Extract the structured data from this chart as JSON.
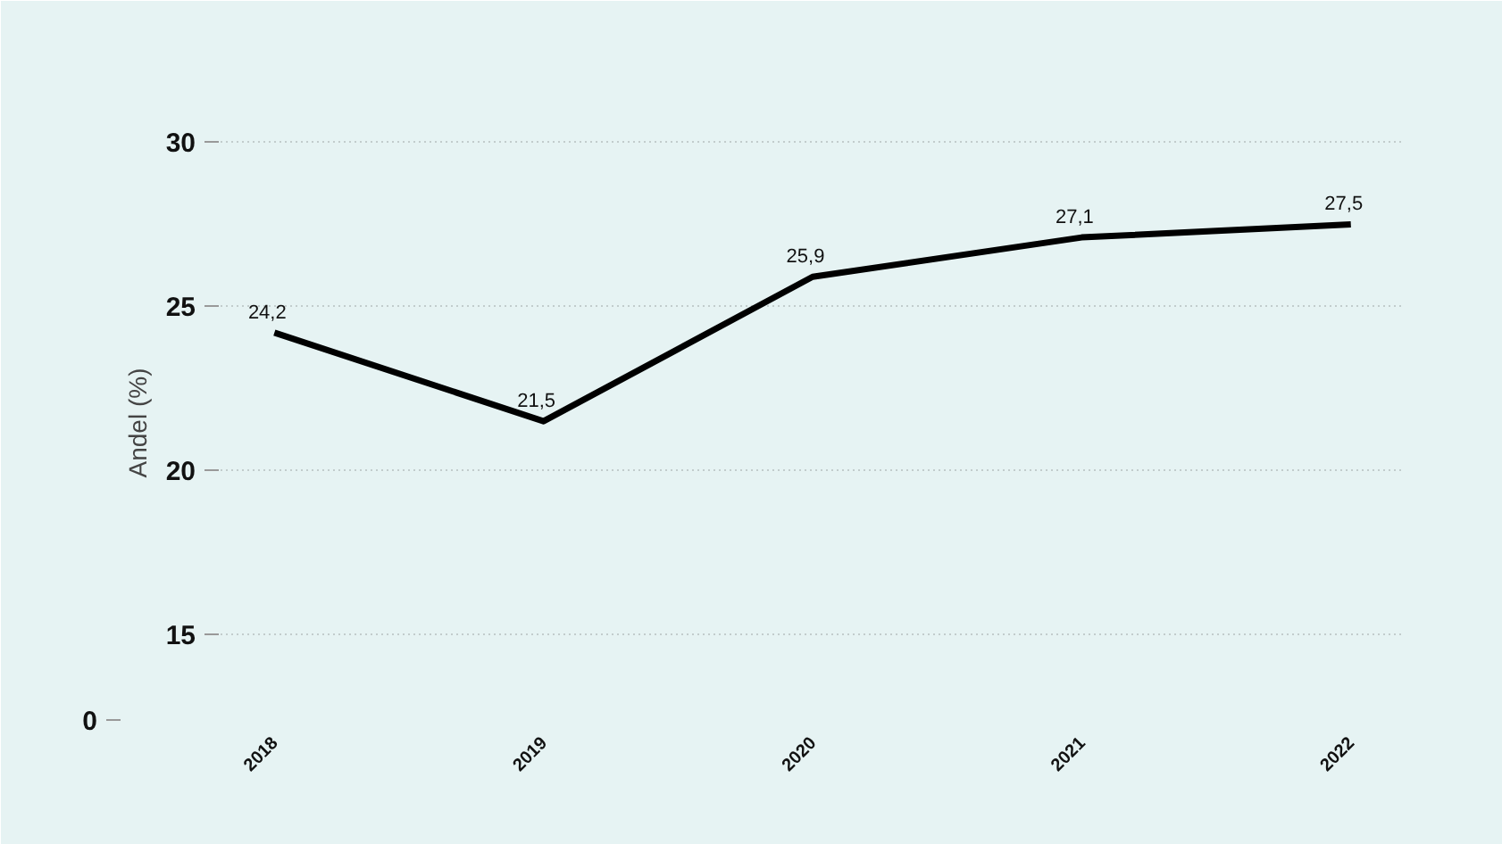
{
  "chart_data": {
    "type": "line",
    "ylabel": "Andel (%)",
    "categories": [
      "2018",
      "2019",
      "2020",
      "2021",
      "2022"
    ],
    "series": [
      {
        "color": "#000000",
        "values": [
          24.2,
          21.5,
          25.9,
          27.1,
          27.5
        ]
      }
    ],
    "value_labels": [
      "24,2",
      "21,5",
      "25,9",
      "27,1",
      "27,5"
    ],
    "ylim": [
      12.4,
      30.5
    ],
    "yticks": [
      15,
      20,
      25,
      30
    ],
    "annotations": [
      "0"
    ],
    "grid": "y",
    "marker": "none",
    "line_style": "solid"
  }
}
